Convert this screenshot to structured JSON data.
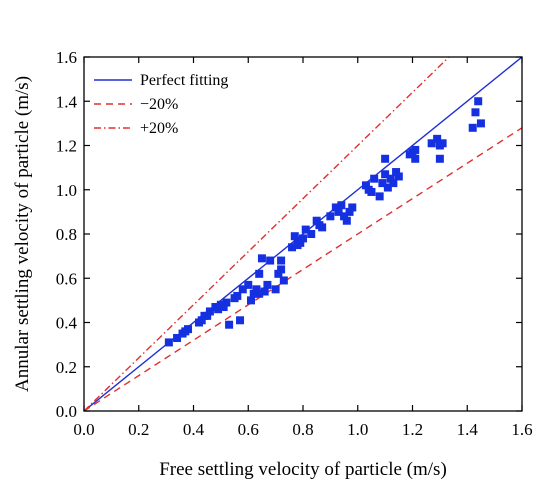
{
  "chart_data": {
    "type": "scatter",
    "title": "",
    "xlabel": "Free settling velocity of particle  (m/s)",
    "ylabel": "Annular settling velocity of particle  (m/s)",
    "xlim": [
      0.0,
      1.6
    ],
    "ylim": [
      0.0,
      1.6
    ],
    "xticks": [
      "0.0",
      "0.2",
      "0.4",
      "0.6",
      "0.8",
      "1.0",
      "1.2",
      "1.4",
      "1.6"
    ],
    "yticks": [
      "0.0",
      "0.2",
      "0.4",
      "0.6",
      "0.8",
      "1.0",
      "1.2",
      "1.4",
      "1.6"
    ],
    "grid": false,
    "legend_position": "top-left",
    "reference_lines": [
      {
        "name": "Perfect fitting",
        "slope": 1.0,
        "style": "solid",
        "color": "#1f2fd6"
      },
      {
        "name": "−20%",
        "slope": 0.8,
        "style": "dashed",
        "color": "#e03030"
      },
      {
        "name": "+20%",
        "slope": 1.2,
        "style": "dashdot",
        "color": "#e03030"
      }
    ],
    "series": [
      {
        "marker": "square",
        "color": "#1530e0",
        "points": [
          [
            0.31,
            0.31
          ],
          [
            0.34,
            0.33
          ],
          [
            0.36,
            0.35
          ],
          [
            0.37,
            0.36
          ],
          [
            0.38,
            0.37
          ],
          [
            0.42,
            0.4
          ],
          [
            0.43,
            0.41
          ],
          [
            0.44,
            0.43
          ],
          [
            0.45,
            0.43
          ],
          [
            0.46,
            0.45
          ],
          [
            0.48,
            0.47
          ],
          [
            0.49,
            0.46
          ],
          [
            0.5,
            0.48
          ],
          [
            0.51,
            0.47
          ],
          [
            0.52,
            0.49
          ],
          [
            0.53,
            0.39
          ],
          [
            0.55,
            0.51
          ],
          [
            0.56,
            0.52
          ],
          [
            0.57,
            0.41
          ],
          [
            0.58,
            0.55
          ],
          [
            0.6,
            0.57
          ],
          [
            0.61,
            0.5
          ],
          [
            0.62,
            0.53
          ],
          [
            0.63,
            0.55
          ],
          [
            0.64,
            0.62
          ],
          [
            0.64,
            0.53
          ],
          [
            0.65,
            0.69
          ],
          [
            0.66,
            0.54
          ],
          [
            0.67,
            0.57
          ],
          [
            0.68,
            0.68
          ],
          [
            0.7,
            0.55
          ],
          [
            0.71,
            0.62
          ],
          [
            0.72,
            0.68
          ],
          [
            0.72,
            0.64
          ],
          [
            0.73,
            0.59
          ],
          [
            0.76,
            0.74
          ],
          [
            0.77,
            0.79
          ],
          [
            0.78,
            0.75
          ],
          [
            0.78,
            0.77
          ],
          [
            0.79,
            0.76
          ],
          [
            0.8,
            0.78
          ],
          [
            0.81,
            0.82
          ],
          [
            0.83,
            0.8
          ],
          [
            0.85,
            0.86
          ],
          [
            0.86,
            0.84
          ],
          [
            0.87,
            0.83
          ],
          [
            0.9,
            0.88
          ],
          [
            0.92,
            0.92
          ],
          [
            0.93,
            0.9
          ],
          [
            0.94,
            0.93
          ],
          [
            0.95,
            0.88
          ],
          [
            0.96,
            0.86
          ],
          [
            0.97,
            0.9
          ],
          [
            0.98,
            0.92
          ],
          [
            1.03,
            1.02
          ],
          [
            1.04,
            1.0
          ],
          [
            1.05,
            0.99
          ],
          [
            1.06,
            1.05
          ],
          [
            1.08,
            0.97
          ],
          [
            1.09,
            1.03
          ],
          [
            1.1,
            1.14
          ],
          [
            1.1,
            1.07
          ],
          [
            1.11,
            1.01
          ],
          [
            1.12,
            1.05
          ],
          [
            1.13,
            1.03
          ],
          [
            1.14,
            1.08
          ],
          [
            1.15,
            1.06
          ],
          [
            1.19,
            1.16
          ],
          [
            1.2,
            1.17
          ],
          [
            1.21,
            1.18
          ],
          [
            1.21,
            1.14
          ],
          [
            1.27,
            1.21
          ],
          [
            1.29,
            1.23
          ],
          [
            1.3,
            1.2
          ],
          [
            1.31,
            1.21
          ],
          [
            1.3,
            1.14
          ],
          [
            1.42,
            1.28
          ],
          [
            1.43,
            1.35
          ],
          [
            1.44,
            1.4
          ],
          [
            1.45,
            1.3
          ]
        ]
      }
    ]
  }
}
